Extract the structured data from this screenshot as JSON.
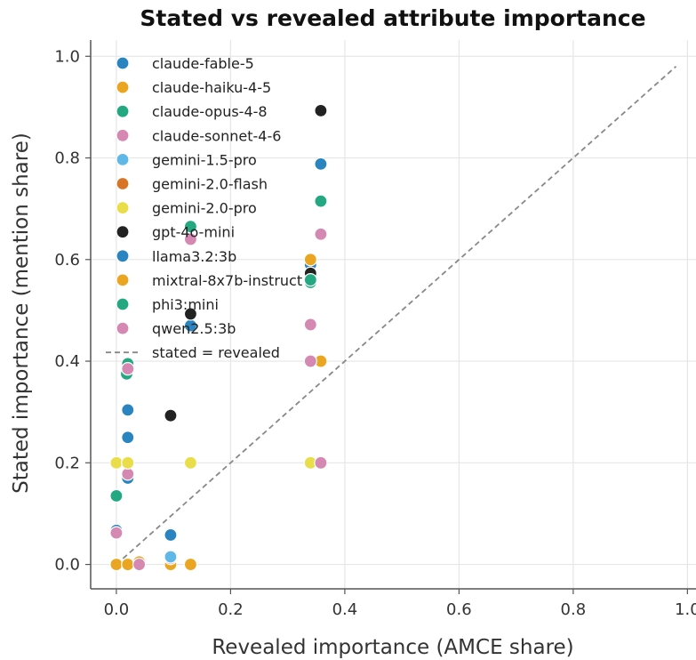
{
  "chart_data": {
    "type": "scatter",
    "title": "Stated vs revealed attribute importance",
    "xlabel": "Revealed importance (AMCE share)",
    "ylabel": "Stated importance (mention share)",
    "xlim": [
      -0.045,
      1.015
    ],
    "ylim": [
      -0.048,
      1.032
    ],
    "xticks": [
      "0.0",
      "0.2",
      "0.4",
      "0.6",
      "0.8",
      "1.0"
    ],
    "yticks": [
      "0.0",
      "0.2",
      "0.4",
      "0.6",
      "0.8",
      "1.0"
    ],
    "grid": true,
    "legend_position": "top-left",
    "reference_line": {
      "label": "stated = revealed",
      "from": [
        0.0,
        0.0
      ],
      "to": [
        0.98,
        0.98
      ],
      "color": "#888888",
      "style": "dashed"
    },
    "series": [
      {
        "name": "claude-fable-5",
        "color": "#2a84c0",
        "points": [
          [
            0.0,
            0.067
          ],
          [
            0.02,
            0.25
          ],
          [
            0.02,
            0.17
          ],
          [
            0.095,
            0.058
          ],
          [
            0.13,
            0.47
          ],
          [
            0.34,
            0.59
          ],
          [
            0.358,
            0.788
          ]
        ]
      },
      {
        "name": "claude-haiku-4-5",
        "color": "#eaa620",
        "points": [
          [
            0.0,
            0.0
          ],
          [
            0.02,
            0.0
          ],
          [
            0.095,
            0.0
          ],
          [
            0.13,
            0.0
          ],
          [
            0.34,
            0.6
          ],
          [
            0.358,
            0.4
          ]
        ]
      },
      {
        "name": "claude-opus-4-8",
        "color": "#23a882",
        "points": [
          [
            0.0,
            0.135
          ],
          [
            0.018,
            0.375
          ],
          [
            0.02,
            0.395
          ],
          [
            0.13,
            0.665
          ],
          [
            0.34,
            0.555
          ],
          [
            0.358,
            0.715
          ]
        ]
      },
      {
        "name": "claude-sonnet-4-6",
        "color": "#d488b2",
        "points": [
          [
            0.0,
            0.062
          ],
          [
            0.02,
            0.178
          ],
          [
            0.02,
            0.385
          ],
          [
            0.04,
            0.002
          ],
          [
            0.095,
            0.012
          ],
          [
            0.13,
            0.64
          ],
          [
            0.34,
            0.472
          ],
          [
            0.34,
            0.4
          ],
          [
            0.358,
            0.65
          ],
          [
            0.358,
            0.2
          ]
        ]
      },
      {
        "name": "gemini-1.5-pro",
        "color": "#5fb8e6",
        "points": [
          [
            0.04,
            0.006
          ],
          [
            0.095,
            0.015
          ]
        ]
      },
      {
        "name": "gemini-2.0-flash",
        "color": "#d87426",
        "points": [
          [
            0.0,
            0.001
          ]
        ]
      },
      {
        "name": "gemini-2.0-pro",
        "color": "#eadd4a",
        "points": [
          [
            0.0,
            0.2
          ],
          [
            0.02,
            0.2
          ],
          [
            0.13,
            0.2
          ],
          [
            0.34,
            0.2
          ]
        ]
      },
      {
        "name": "gpt-4o-mini",
        "color": "#222222",
        "points": [
          [
            0.02,
            0.305
          ],
          [
            0.095,
            0.293
          ],
          [
            0.13,
            0.493
          ],
          [
            0.34,
            0.573
          ],
          [
            0.358,
            0.893
          ]
        ]
      },
      {
        "name": "llama3.2:3b",
        "color": "#2a84c0",
        "points": [
          [
            0.02,
            0.304
          ]
        ]
      },
      {
        "name": "mixtral-8x7b-instruct",
        "color": "#eaa620",
        "points": [
          [
            0.0,
            0.0
          ],
          [
            0.02,
            0.0
          ],
          [
            0.04,
            0.005
          ]
        ]
      },
      {
        "name": "phi3:mini",
        "color": "#23a882",
        "points": [
          [
            0.34,
            0.56
          ]
        ]
      },
      {
        "name": "qwen2.5:3b",
        "color": "#d488b2",
        "points": [
          [
            0.04,
            0.0
          ],
          [
            0.358,
            0.2
          ]
        ]
      }
    ]
  }
}
